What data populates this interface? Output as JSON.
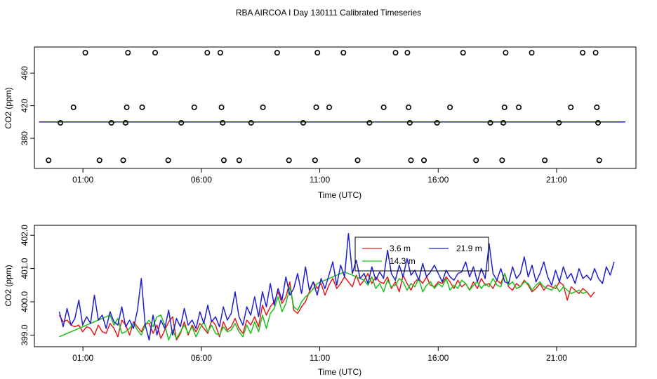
{
  "title": "RBA AIRCOA I  Day 130111  Calibrated Timeseries",
  "colors": {
    "3.6 m": "#e41a1c",
    "21.9 m": "#1f1fd0",
    "14.3 m": "#19c419"
  },
  "chart_data": [
    {
      "type": "line",
      "xlabel": "Time (UTC)",
      "ylabel": "CO2 (ppm)",
      "xticks": [
        "01:00",
        "06:00",
        "11:00",
        "16:00",
        "21:00"
      ],
      "xtick_hours": [
        1,
        6,
        11,
        16,
        21
      ],
      "yticks": [
        380,
        420,
        460
      ],
      "ytick_labels": [
        "380",
        "420",
        "460"
      ],
      "xlim": [
        -1.05,
        24.35
      ],
      "ylim": [
        343,
        492
      ],
      "grid": false,
      "series": [
        {
          "name": "3.6 m",
          "level": 399.9
        },
        {
          "name": "14.3 m",
          "level": 400.0
        },
        {
          "name": "21.9 m",
          "level": 400.1
        }
      ],
      "flagged_points_hours": [
        [
          -0.45,
          353
        ],
        [
          0.05,
          399
        ],
        [
          0.6,
          418
        ],
        [
          1.1,
          485
        ],
        [
          1.7,
          353
        ],
        [
          2.2,
          399
        ],
        [
          2.7,
          353
        ],
        [
          2.8,
          399
        ],
        [
          2.85,
          418
        ],
        [
          2.9,
          485
        ],
        [
          3.5,
          418
        ],
        [
          4.05,
          485
        ],
        [
          4.6,
          353
        ],
        [
          5.15,
          399
        ],
        [
          5.7,
          418
        ],
        [
          6.25,
          485
        ],
        [
          6.8,
          485
        ],
        [
          6.85,
          418
        ],
        [
          6.9,
          399
        ],
        [
          6.95,
          353
        ],
        [
          7.6,
          353
        ],
        [
          8.1,
          399
        ],
        [
          8.6,
          418
        ],
        [
          9.2,
          485
        ],
        [
          9.7,
          353
        ],
        [
          10.3,
          399
        ],
        [
          10.8,
          353
        ],
        [
          10.85,
          418
        ],
        [
          10.9,
          485
        ],
        [
          11.4,
          418
        ],
        [
          12.0,
          485
        ],
        [
          12.6,
          353
        ],
        [
          13.1,
          399
        ],
        [
          13.7,
          418
        ],
        [
          14.2,
          485
        ],
        [
          14.7,
          485
        ],
        [
          14.75,
          418
        ],
        [
          14.8,
          399
        ],
        [
          14.85,
          353
        ],
        [
          15.4,
          353
        ],
        [
          15.95,
          399
        ],
        [
          16.5,
          418
        ],
        [
          17.05,
          485
        ],
        [
          17.6,
          353
        ],
        [
          18.2,
          399
        ],
        [
          18.7,
          353
        ],
        [
          18.75,
          399
        ],
        [
          18.8,
          418
        ],
        [
          18.85,
          485
        ],
        [
          19.4,
          418
        ],
        [
          19.95,
          485
        ],
        [
          20.5,
          353
        ],
        [
          21.1,
          399
        ],
        [
          21.6,
          418
        ],
        [
          22.1,
          485
        ],
        [
          22.65,
          485
        ],
        [
          22.7,
          418
        ],
        [
          22.75,
          399
        ],
        [
          22.8,
          353
        ]
      ]
    },
    {
      "type": "line",
      "xlabel": "Time (UTC)",
      "ylabel": "CO2 (ppm)",
      "xticks": [
        "01:00",
        "06:00",
        "11:00",
        "16:00",
        "21:00"
      ],
      "xtick_hours": [
        1,
        6,
        11,
        16,
        21
      ],
      "yticks": [
        399.0,
        400.0,
        401.0,
        402.0
      ],
      "ytick_labels": [
        "399.0",
        "400.0",
        "401.0",
        "402.0"
      ],
      "xlim": [
        -1.05,
        24.35
      ],
      "ylim": [
        398.65,
        402.3
      ],
      "grid": false,
      "legend_position": "top-center",
      "series": [
        {
          "name": "3.6 m",
          "t0": 0.0,
          "dt": 0.165,
          "values": [
            399.6,
            399.4,
            399.45,
            399.3,
            399.25,
            399.3,
            399.1,
            399.25,
            399.2,
            399.0,
            399.3,
            399.1,
            399.05,
            399.35,
            399.2,
            398.95,
            399.45,
            399.3,
            399.0,
            399.4,
            399.25,
            399.1,
            399.35,
            399.35,
            399.05,
            399.3,
            398.9,
            399.15,
            399.4,
            399.55,
            398.85,
            399.05,
            399.4,
            399.0,
            399.3,
            399.1,
            399.35,
            399.2,
            399.05,
            399.45,
            399.3,
            398.95,
            399.4,
            399.15,
            399.25,
            399.5,
            399.2,
            399.05,
            399.45,
            399.3,
            399.55,
            399.25,
            399.9,
            399.6,
            399.85,
            400.0,
            400.3,
            399.95,
            400.15,
            400.6,
            399.75,
            399.65,
            399.85,
            400.0,
            400.3,
            400.6,
            400.4,
            400.55,
            400.2,
            400.5,
            400.7,
            400.4,
            400.55,
            400.75,
            400.6,
            400.45,
            400.8,
            400.5,
            400.65,
            400.85,
            400.55,
            400.75,
            400.6,
            400.55,
            400.75,
            400.4,
            400.6,
            400.3,
            400.8,
            400.55,
            400.35,
            400.6,
            400.7,
            400.55,
            400.75,
            400.5,
            400.45,
            400.6,
            400.55,
            400.75,
            400.6,
            400.4,
            400.65,
            400.45,
            400.55,
            400.35,
            400.6,
            400.4,
            400.7,
            400.5,
            400.55,
            400.4,
            400.65,
            400.55,
            400.85,
            400.45,
            400.35,
            400.55,
            400.45,
            400.65,
            400.5,
            400.3,
            400.4,
            400.55,
            400.35,
            400.5,
            400.45,
            400.4,
            400.6,
            400.5,
            400.05,
            400.45,
            400.35,
            400.25,
            400.4,
            400.3,
            400.15,
            400.3
          ]
        },
        {
          "name": "14.3 m",
          "t0": 0.0,
          "dt": 0.165,
          "values": [
            398.95,
            399.0,
            399.05,
            399.1,
            399.15,
            399.2,
            399.25,
            399.3,
            399.35,
            399.4,
            399.45,
            399.5,
            399.55,
            399.6,
            399.3,
            399.5,
            399.05,
            399.1,
            399.2,
            399.35,
            399.15,
            399.0,
            399.3,
            399.45,
            399.25,
            399.55,
            399.6,
            399.3,
            398.85,
            399.15,
            398.9,
            399.1,
            399.3,
            399.05,
            399.25,
            398.95,
            399.2,
            399.4,
            399.1,
            399.3,
            399.05,
            399.0,
            399.25,
            399.1,
            399.15,
            399.35,
            399.1,
            398.95,
            399.3,
            399.05,
            399.4,
            399.1,
            399.6,
            399.2,
            399.65,
            399.8,
            400.15,
            399.7,
            399.95,
            400.45,
            399.85,
            399.75,
            400.0,
            400.15,
            400.25,
            400.4,
            400.55,
            400.6,
            400.65,
            400.7,
            400.75,
            400.8,
            400.85,
            400.9,
            400.85,
            400.8,
            400.75,
            400.7,
            400.65,
            400.5,
            400.75,
            400.4,
            400.55,
            400.3,
            400.65,
            400.45,
            400.5,
            400.7,
            400.6,
            400.35,
            400.55,
            400.45,
            400.7,
            400.3,
            400.5,
            400.6,
            400.4,
            400.55,
            400.45,
            400.7,
            400.35,
            400.5,
            400.4,
            400.65,
            400.55,
            400.35,
            400.5,
            400.6,
            400.4,
            400.55,
            400.45,
            400.7,
            400.5,
            400.45,
            400.85,
            400.5,
            400.6,
            400.4,
            400.45,
            400.6,
            400.55,
            400.35,
            400.5,
            400.6,
            400.45,
            400.4,
            400.35,
            400.5,
            400.3,
            400.45,
            400.35,
            400.25,
            400.3,
            400.35,
            400.25,
            400.3
          ]
        },
        {
          "name": "21.9 m",
          "t0": 0.0,
          "dt": 0.165,
          "values": [
            399.7,
            399.25,
            399.8,
            399.3,
            399.5,
            400.05,
            399.3,
            399.55,
            399.35,
            400.2,
            399.45,
            399.6,
            399.2,
            399.7,
            399.4,
            399.3,
            399.85,
            399.25,
            399.45,
            399.2,
            399.75,
            400.7,
            399.3,
            398.85,
            399.6,
            399.0,
            399.45,
            399.2,
            399.75,
            399.0,
            399.5,
            399.25,
            399.8,
            399.3,
            399.45,
            399.2,
            399.7,
            399.35,
            399.9,
            399.4,
            399.55,
            399.25,
            399.85,
            399.45,
            399.65,
            400.3,
            399.55,
            399.3,
            399.85,
            399.6,
            400.15,
            399.55,
            400.3,
            399.85,
            400.55,
            399.9,
            400.4,
            400.05,
            400.75,
            400.2,
            400.4,
            400.85,
            400.25,
            401.05,
            400.35,
            400.6,
            400.2,
            400.7,
            400.4,
            400.8,
            401.2,
            400.5,
            401.1,
            400.75,
            402.05,
            400.85,
            401.25,
            400.7,
            400.85,
            400.55,
            401.05,
            400.65,
            400.9,
            400.7,
            401.55,
            400.85,
            400.65,
            401.1,
            400.75,
            401.3,
            400.8,
            400.95,
            400.65,
            401.15,
            400.75,
            400.9,
            401.1,
            400.85,
            400.6,
            400.95,
            400.75,
            400.65,
            400.85,
            400.9,
            401.2,
            400.75,
            401.05,
            400.6,
            401.0,
            400.7,
            401.75,
            400.85,
            400.65,
            401.0,
            400.6,
            400.55,
            401.05,
            400.7,
            400.85,
            401.35,
            400.75,
            401.1,
            400.6,
            400.85,
            401.2,
            400.75,
            400.5,
            400.95,
            400.6,
            401.05,
            400.7,
            400.85,
            400.55,
            401.0,
            400.7,
            400.8,
            400.65,
            401.0,
            400.7,
            400.55,
            401.05,
            400.8,
            401.2
          ]
        }
      ]
    }
  ]
}
